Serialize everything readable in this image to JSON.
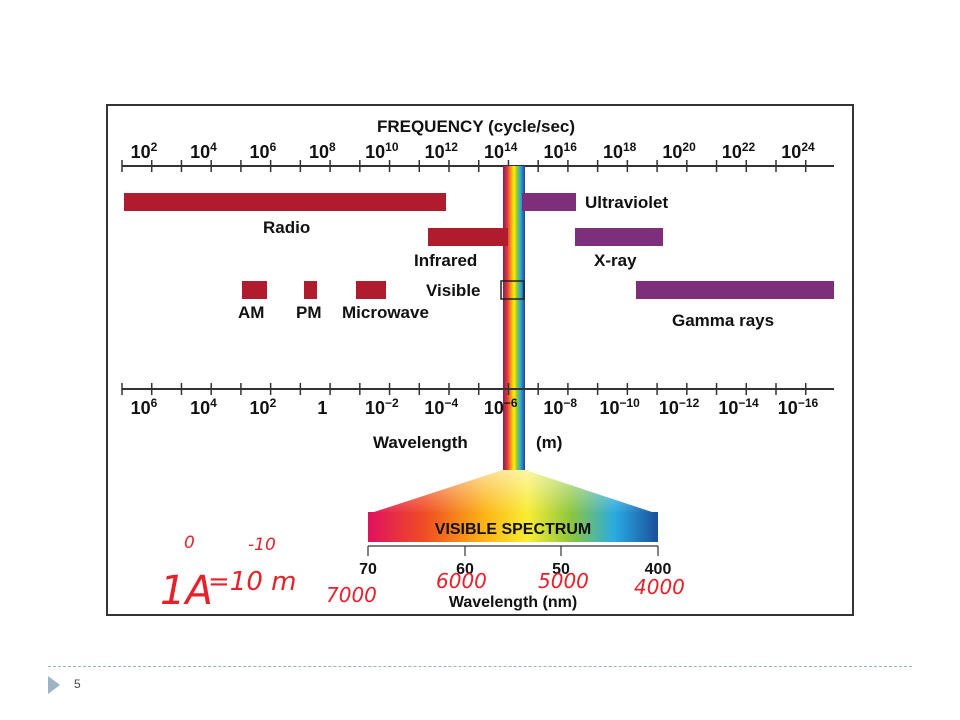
{
  "figure": {
    "frequency_title": "FREQUENCY (cycle/sec)",
    "frequency_ticks": [
      {
        "base": "10",
        "exp": "2"
      },
      {
        "base": "10",
        "exp": "4"
      },
      {
        "base": "10",
        "exp": "6"
      },
      {
        "base": "10",
        "exp": "8"
      },
      {
        "base": "10",
        "exp": "10"
      },
      {
        "base": "10",
        "exp": "12"
      },
      {
        "base": "10",
        "exp": "14"
      },
      {
        "base": "10",
        "exp": "16"
      },
      {
        "base": "10",
        "exp": "18"
      },
      {
        "base": "10",
        "exp": "20"
      },
      {
        "base": "10",
        "exp": "22"
      },
      {
        "base": "10",
        "exp": "24"
      }
    ],
    "wavelength_ticks": [
      {
        "base": "10",
        "exp": "6"
      },
      {
        "base": "10",
        "exp": "4"
      },
      {
        "base": "10",
        "exp": "2"
      },
      {
        "base": "1",
        "exp": ""
      },
      {
        "base": "10",
        "exp": "−2"
      },
      {
        "base": "10",
        "exp": "−4"
      },
      {
        "base": "10",
        "exp": "−6"
      },
      {
        "base": "10",
        "exp": "−8"
      },
      {
        "base": "10",
        "exp": "−10"
      },
      {
        "base": "10",
        "exp": "−12"
      },
      {
        "base": "10",
        "exp": "−14"
      },
      {
        "base": "10",
        "exp": "−16"
      }
    ],
    "wavelength_label": "Wavelength",
    "wavelength_unit": "(m)",
    "bands": {
      "radio": "Radio",
      "infrared": "Infrared",
      "visible": "Visible",
      "ultraviolet": "Ultraviolet",
      "xray": "X-ray",
      "gamma": "Gamma rays",
      "am": "AM",
      "pm": "PM",
      "microwave": "Microwave"
    },
    "visible_spectrum": {
      "title": "VISIBLE SPECTRUM",
      "ticks": [
        "70",
        "60",
        "50",
        "400"
      ],
      "axis_label": "Wavelength (nm)"
    },
    "colors": {
      "band_red": "#b01c2e",
      "band_purple": "#7d2f7b",
      "handwriting": "#e8202a"
    }
  },
  "annotations": {
    "angstrom_unit": "1A",
    "angstrom_equals": "=10 m",
    "exponent_zero": "0",
    "exponent_neg10": "-10",
    "ticks": [
      "7000",
      "6000",
      "5000",
      "4000"
    ]
  },
  "footer": {
    "page_number": "5"
  }
}
